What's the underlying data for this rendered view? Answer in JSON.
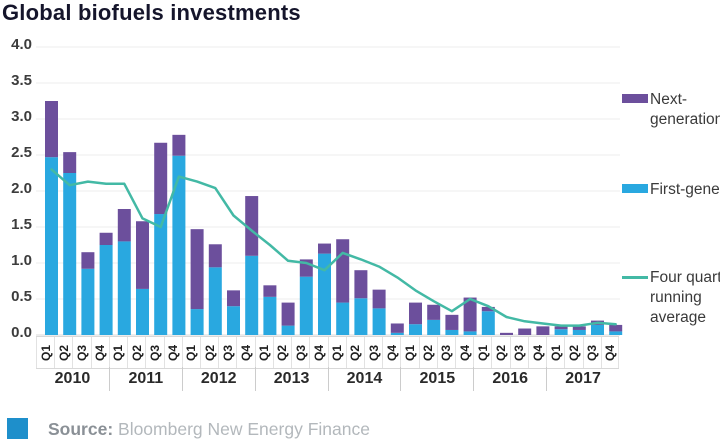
{
  "title": "Global biofuels investments",
  "chart_data": {
    "type": "bar",
    "stacked": true,
    "title": "Global biofuels investments",
    "xlabel": "",
    "ylabel": "",
    "ylim": [
      0,
      4.0
    ],
    "yticks": [
      "4.0",
      "3.5",
      "3.0",
      "2.5",
      "2.0",
      "1.5",
      "1.0",
      "0.5",
      "0.0"
    ],
    "grid": "faint-horizontal",
    "legend_position": "right",
    "years": [
      "2010",
      "2011",
      "2012",
      "2013",
      "2014",
      "2015",
      "2016",
      "2017"
    ],
    "categories": [
      "Q1",
      "Q2",
      "Q3",
      "Q4",
      "Q1",
      "Q2",
      "Q3",
      "Q4",
      "Q1",
      "Q2",
      "Q3",
      "Q4",
      "Q1",
      "Q2",
      "Q3",
      "Q4",
      "Q1",
      "Q2",
      "Q3",
      "Q4",
      "Q1",
      "Q2",
      "Q3",
      "Q4",
      "Q1",
      "Q2",
      "Q3",
      "Q4",
      "Q1",
      "Q2",
      "Q3",
      "Q4"
    ],
    "series": [
      {
        "name": "First-generation",
        "color": "#29a8e0",
        "values": [
          2.47,
          2.25,
          0.92,
          1.25,
          1.3,
          0.64,
          1.68,
          2.49,
          0.36,
          0.94,
          0.4,
          1.1,
          0.53,
          0.13,
          0.81,
          1.13,
          0.45,
          0.51,
          0.37,
          0.03,
          0.15,
          0.21,
          0.07,
          0.05,
          0.33,
          0.0,
          0.0,
          0.0,
          0.08,
          0.07,
          0.14,
          0.05
        ]
      },
      {
        "name": "Next-generation",
        "color": "#6c4f9c",
        "values": [
          0.78,
          0.29,
          0.23,
          0.17,
          0.45,
          0.94,
          0.99,
          0.29,
          1.11,
          0.32,
          0.22,
          0.83,
          0.16,
          0.32,
          0.24,
          0.14,
          0.88,
          0.39,
          0.26,
          0.13,
          0.3,
          0.21,
          0.21,
          0.47,
          0.06,
          0.03,
          0.09,
          0.12,
          0.04,
          0.05,
          0.06,
          0.09
        ]
      }
    ],
    "line_series": {
      "name": "Four quarter running average",
      "color": "#43b9a5",
      "values": [
        2.3,
        2.08,
        2.13,
        2.1,
        2.1,
        1.62,
        1.5,
        2.2,
        2.13,
        2.04,
        1.66,
        1.45,
        1.25,
        1.03,
        1.0,
        0.9,
        1.14,
        1.05,
        0.95,
        0.8,
        0.62,
        0.47,
        0.33,
        0.5,
        0.4,
        0.25,
        0.19,
        0.16,
        0.13,
        0.13,
        0.17,
        0.15
      ]
    }
  },
  "legend": {
    "items": [
      {
        "label": "Next-generation",
        "color": "#6c4f9c",
        "type": "swatch"
      },
      {
        "label": "First-generation",
        "color": "#29a8e0",
        "type": "swatch"
      },
      {
        "label": "Four quarter running average",
        "color": "#43b9a5",
        "type": "line"
      }
    ]
  },
  "footer": {
    "source_label": "Source:",
    "source_text": " Bloomberg New Energy Finance",
    "icon_color": "#1e8fcb"
  }
}
